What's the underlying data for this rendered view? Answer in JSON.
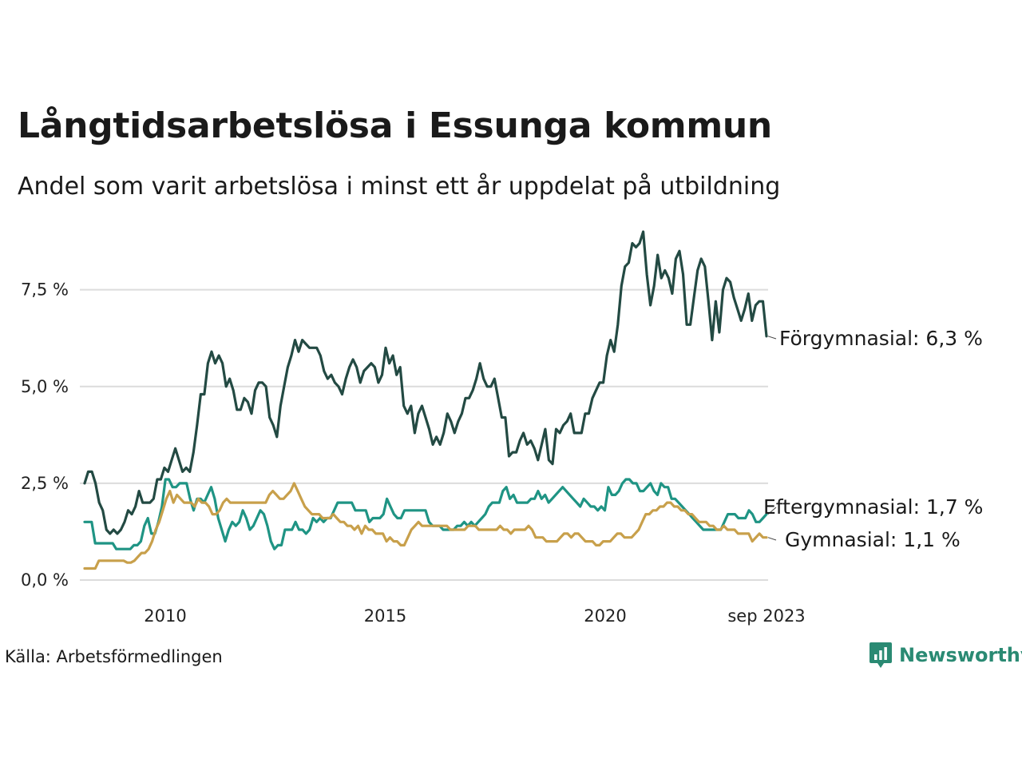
{
  "title": "Långtidsarbetslösa i Essunga kommun",
  "subtitle": "Andel som varit arbetslösa i minst ett år uppdelat på utbildning",
  "source": "Källa: Arbetsförmedlingen",
  "brand": {
    "name": "Newsworthy",
    "icon": "newsworthy-logo-icon"
  },
  "chart_data": {
    "type": "line",
    "x_start": "2008-03",
    "x_end": "2023-09",
    "x_step": "month",
    "xticks": [
      {
        "x": 2010.0,
        "label": "2010"
      },
      {
        "x": 2015.0,
        "label": "2015"
      },
      {
        "x": 2020.0,
        "label": "2020"
      },
      {
        "x": 2023.667,
        "label": "sep 2023"
      }
    ],
    "ylim": [
      0,
      9
    ],
    "yticks": [
      {
        "y": 0,
        "label": "0,0 %"
      },
      {
        "y": 2.5,
        "label": "2,5 %"
      },
      {
        "y": 5,
        "label": "5,0 %"
      },
      {
        "y": 7.5,
        "label": "7,5 %"
      }
    ],
    "grid": true,
    "series": [
      {
        "name": "Förgymnasial",
        "end_label": "Förgymnasial: 6,3 %",
        "color": "#234a43",
        "values": [
          2.5,
          2.8,
          2.8,
          2.5,
          2.0,
          1.8,
          1.3,
          1.2,
          1.3,
          1.2,
          1.3,
          1.5,
          1.8,
          1.7,
          1.9,
          2.3,
          2.0,
          2.0,
          2.0,
          2.1,
          2.6,
          2.6,
          2.9,
          2.8,
          3.1,
          3.4,
          3.1,
          2.8,
          2.9,
          2.8,
          3.3,
          4.0,
          4.8,
          4.8,
          5.6,
          5.9,
          5.6,
          5.8,
          5.6,
          5.0,
          5.2,
          4.9,
          4.4,
          4.4,
          4.7,
          4.6,
          4.3,
          4.9,
          5.1,
          5.1,
          5.0,
          4.2,
          4.0,
          3.7,
          4.5,
          5.0,
          5.5,
          5.8,
          6.2,
          5.9,
          6.2,
          6.1,
          6.0,
          6.0,
          6.0,
          5.8,
          5.4,
          5.2,
          5.3,
          5.1,
          5.0,
          4.8,
          5.2,
          5.5,
          5.7,
          5.5,
          5.1,
          5.4,
          5.5,
          5.6,
          5.5,
          5.1,
          5.3,
          6.0,
          5.6,
          5.8,
          5.3,
          5.5,
          4.5,
          4.3,
          4.5,
          3.8,
          4.3,
          4.5,
          4.2,
          3.9,
          3.5,
          3.7,
          3.5,
          3.8,
          4.3,
          4.1,
          3.8,
          4.1,
          4.3,
          4.7,
          4.7,
          4.9,
          5.2,
          5.6,
          5.2,
          5.0,
          5.0,
          5.2,
          4.7,
          4.2,
          4.2,
          3.2,
          3.3,
          3.3,
          3.6,
          3.8,
          3.5,
          3.6,
          3.4,
          3.1,
          3.5,
          3.9,
          3.1,
          3.0,
          3.9,
          3.8,
          4.0,
          4.1,
          4.3,
          3.8,
          3.8,
          3.8,
          4.3,
          4.3,
          4.7,
          4.9,
          5.1,
          5.1,
          5.8,
          6.2,
          5.9,
          6.6,
          7.6,
          8.1,
          8.2,
          8.7,
          8.6,
          8.7,
          9.0,
          7.9,
          7.1,
          7.6,
          8.4,
          7.8,
          8.0,
          7.8,
          7.4,
          8.3,
          8.5,
          7.9,
          6.6,
          6.6,
          7.3,
          8.0,
          8.3,
          8.1,
          7.2,
          6.2,
          7.2,
          6.4,
          7.5,
          7.8,
          7.7,
          7.3,
          7.0,
          6.7,
          7.0,
          7.4,
          6.7,
          7.1,
          7.2,
          7.2,
          6.3
        ]
      },
      {
        "name": "Eftergymnasial",
        "end_label": "Eftergymnasial: 1,7 %",
        "color": "#1f9484",
        "values": [
          1.5,
          1.5,
          1.5,
          0.95,
          0.95,
          0.95,
          0.95,
          0.95,
          0.95,
          0.8,
          0.8,
          0.8,
          0.8,
          0.8,
          0.9,
          0.9,
          1.0,
          1.4,
          1.6,
          1.2,
          1.2,
          1.5,
          1.9,
          2.6,
          2.6,
          2.4,
          2.4,
          2.5,
          2.5,
          2.5,
          2.1,
          1.8,
          2.1,
          2.1,
          2.0,
          2.2,
          2.4,
          2.1,
          1.6,
          1.3,
          1.0,
          1.3,
          1.5,
          1.4,
          1.5,
          1.8,
          1.6,
          1.3,
          1.4,
          1.6,
          1.8,
          1.7,
          1.4,
          1.0,
          0.8,
          0.9,
          0.9,
          1.3,
          1.3,
          1.3,
          1.5,
          1.3,
          1.3,
          1.2,
          1.3,
          1.6,
          1.5,
          1.6,
          1.5,
          1.6,
          1.6,
          1.8,
          2.0,
          2.0,
          2.0,
          2.0,
          2.0,
          1.8,
          1.8,
          1.8,
          1.8,
          1.5,
          1.6,
          1.6,
          1.6,
          1.7,
          2.1,
          1.9,
          1.7,
          1.6,
          1.6,
          1.8,
          1.8,
          1.8,
          1.8,
          1.8,
          1.8,
          1.8,
          1.5,
          1.4,
          1.4,
          1.4,
          1.3,
          1.3,
          1.3,
          1.3,
          1.4,
          1.4,
          1.5,
          1.4,
          1.5,
          1.4,
          1.5,
          1.6,
          1.7,
          1.9,
          2.0,
          2.0,
          2.0,
          2.3,
          2.4,
          2.1,
          2.2,
          2.0,
          2.0,
          2.0,
          2.0,
          2.1,
          2.1,
          2.3,
          2.1,
          2.2,
          2.0,
          2.1,
          2.2,
          2.3,
          2.4,
          2.3,
          2.2,
          2.1,
          2.0,
          1.9,
          2.1,
          2.0,
          1.9,
          1.9,
          1.8,
          1.9,
          1.8,
          2.4,
          2.2,
          2.2,
          2.3,
          2.5,
          2.6,
          2.6,
          2.5,
          2.5,
          2.3,
          2.3,
          2.4,
          2.5,
          2.3,
          2.2,
          2.5,
          2.4,
          2.4,
          2.1,
          2.1,
          2.0,
          1.9,
          1.8,
          1.7,
          1.6,
          1.5,
          1.4,
          1.3,
          1.3,
          1.3,
          1.3,
          1.3,
          1.3,
          1.5,
          1.7,
          1.7,
          1.7,
          1.6,
          1.6,
          1.6,
          1.8,
          1.7,
          1.5,
          1.5,
          1.6,
          1.7
        ]
      },
      {
        "name": "Gymnasial",
        "end_label": "Gymnasial: 1,1 %",
        "color": "#c8a04b",
        "values": [
          0.3,
          0.3,
          0.3,
          0.3,
          0.5,
          0.5,
          0.5,
          0.5,
          0.5,
          0.5,
          0.5,
          0.5,
          0.45,
          0.45,
          0.5,
          0.6,
          0.7,
          0.7,
          0.8,
          1.0,
          1.3,
          1.5,
          1.8,
          2.1,
          2.3,
          2.0,
          2.2,
          2.1,
          2.0,
          2.0,
          2.0,
          1.9,
          2.1,
          2.0,
          2.0,
          1.9,
          1.7,
          1.7,
          1.8,
          2.0,
          2.1,
          2.0,
          2.0,
          2.0,
          2.0,
          2.0,
          2.0,
          2.0,
          2.0,
          2.0,
          2.0,
          2.0,
          2.2,
          2.3,
          2.2,
          2.1,
          2.1,
          2.2,
          2.3,
          2.5,
          2.3,
          2.1,
          1.9,
          1.8,
          1.7,
          1.7,
          1.7,
          1.6,
          1.6,
          1.6,
          1.7,
          1.6,
          1.5,
          1.5,
          1.4,
          1.4,
          1.3,
          1.4,
          1.2,
          1.4,
          1.3,
          1.3,
          1.2,
          1.2,
          1.2,
          1.0,
          1.1,
          1.0,
          1.0,
          0.9,
          0.9,
          1.1,
          1.3,
          1.4,
          1.5,
          1.4,
          1.4,
          1.4,
          1.4,
          1.4,
          1.4,
          1.4,
          1.4,
          1.3,
          1.3,
          1.3,
          1.3,
          1.3,
          1.4,
          1.4,
          1.4,
          1.3,
          1.3,
          1.3,
          1.3,
          1.3,
          1.3,
          1.4,
          1.3,
          1.3,
          1.2,
          1.3,
          1.3,
          1.3,
          1.3,
          1.4,
          1.3,
          1.1,
          1.1,
          1.1,
          1.0,
          1.0,
          1.0,
          1.0,
          1.1,
          1.2,
          1.2,
          1.1,
          1.2,
          1.2,
          1.1,
          1.0,
          1.0,
          1.0,
          0.9,
          0.9,
          1.0,
          1.0,
          1.0,
          1.1,
          1.2,
          1.2,
          1.1,
          1.1,
          1.1,
          1.2,
          1.3,
          1.5,
          1.7,
          1.7,
          1.8,
          1.8,
          1.9,
          1.9,
          2.0,
          2.0,
          1.9,
          1.9,
          1.8,
          1.8,
          1.7,
          1.7,
          1.6,
          1.5,
          1.5,
          1.5,
          1.4,
          1.4,
          1.3,
          1.3,
          1.4,
          1.3,
          1.3,
          1.3,
          1.2,
          1.2,
          1.2,
          1.2,
          1.0,
          1.1,
          1.2,
          1.1,
          1.1
        ]
      }
    ]
  }
}
